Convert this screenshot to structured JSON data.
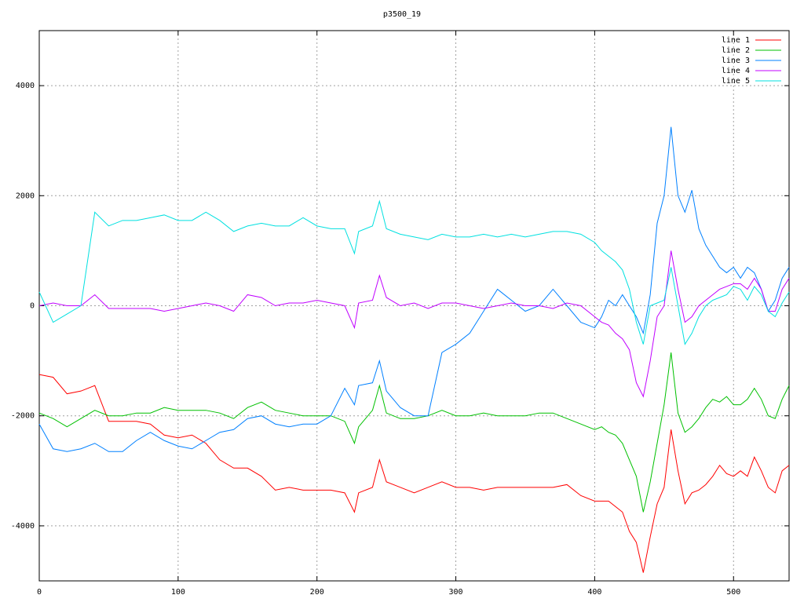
{
  "chart_data": {
    "type": "line",
    "title": "p3500_19",
    "x": [
      0,
      10,
      20,
      30,
      40,
      50,
      60,
      70,
      80,
      90,
      100,
      110,
      120,
      130,
      140,
      150,
      160,
      170,
      180,
      190,
      200,
      210,
      220,
      227,
      230,
      240,
      245,
      250,
      260,
      270,
      280,
      290,
      300,
      310,
      320,
      330,
      340,
      350,
      360,
      370,
      380,
      390,
      400,
      405,
      410,
      415,
      420,
      425,
      430,
      435,
      440,
      445,
      450,
      455,
      460,
      465,
      470,
      475,
      480,
      485,
      490,
      495,
      500,
      505,
      510,
      515,
      520,
      525,
      530,
      535,
      540
    ],
    "series": [
      {
        "name": "line 1",
        "color": "#ff0000",
        "values": [
          -1250,
          -1300,
          -1600,
          -1550,
          -1450,
          -2100,
          -2100,
          -2100,
          -2150,
          -2350,
          -2400,
          -2350,
          -2500,
          -2800,
          -2950,
          -2950,
          -3100,
          -3350,
          -3300,
          -3350,
          -3350,
          -3350,
          -3400,
          -3750,
          -3400,
          -3300,
          -2800,
          -3200,
          -3300,
          -3400,
          -3300,
          -3200,
          -3300,
          -3300,
          -3350,
          -3300,
          -3300,
          -3300,
          -3300,
          -3300,
          -3250,
          -3450,
          -3550,
          -3550,
          -3550,
          -3650,
          -3750,
          -4100,
          -4300,
          -4850,
          -4200,
          -3600,
          -3300,
          -2250,
          -3000,
          -3600,
          -3400,
          -3350,
          -3250,
          -3100,
          -2900,
          -3050,
          -3100,
          -3000,
          -3100,
          -2750,
          -3000,
          -3300,
          -3400,
          -3000,
          -2900
        ]
      },
      {
        "name": "line 2",
        "color": "#00c000",
        "values": [
          -1950,
          -2050,
          -2200,
          -2050,
          -1900,
          -2000,
          -2000,
          -1950,
          -1950,
          -1850,
          -1900,
          -1900,
          -1900,
          -1950,
          -2050,
          -1850,
          -1750,
          -1900,
          -1950,
          -2000,
          -2000,
          -2000,
          -2100,
          -2500,
          -2200,
          -1900,
          -1450,
          -1950,
          -2050,
          -2050,
          -2000,
          -1900,
          -2000,
          -2000,
          -1950,
          -2000,
          -2000,
          -2000,
          -1950,
          -1950,
          -2050,
          -2150,
          -2250,
          -2200,
          -2300,
          -2350,
          -2500,
          -2800,
          -3100,
          -3750,
          -3200,
          -2500,
          -1800,
          -850,
          -1950,
          -2300,
          -2200,
          -2050,
          -1850,
          -1700,
          -1750,
          -1650,
          -1800,
          -1800,
          -1700,
          -1500,
          -1700,
          -2000,
          -2050,
          -1700,
          -1450
        ]
      },
      {
        "name": "line 3",
        "color": "#0080ff",
        "values": [
          -2150,
          -2600,
          -2650,
          -2600,
          -2500,
          -2650,
          -2650,
          -2450,
          -2300,
          -2450,
          -2550,
          -2600,
          -2450,
          -2300,
          -2250,
          -2050,
          -2000,
          -2150,
          -2200,
          -2150,
          -2150,
          -2000,
          -1500,
          -1800,
          -1450,
          -1400,
          -1000,
          -1550,
          -1850,
          -2000,
          -2000,
          -850,
          -700,
          -500,
          -100,
          300,
          100,
          -100,
          0,
          300,
          0,
          -300,
          -400,
          -200,
          100,
          0,
          200,
          0,
          -200,
          -500,
          200,
          1500,
          2000,
          3250,
          2000,
          1700,
          2100,
          1400,
          1100,
          900,
          700,
          600,
          700,
          500,
          700,
          600,
          300,
          -100,
          100,
          500,
          700
        ]
      },
      {
        "name": "line 4",
        "color": "#c000ff",
        "values": [
          0,
          50,
          0,
          0,
          200,
          -50,
          -50,
          -50,
          -50,
          -100,
          -50,
          0,
          50,
          0,
          -100,
          200,
          150,
          0,
          50,
          50,
          100,
          50,
          0,
          -400,
          50,
          100,
          550,
          150,
          0,
          50,
          -50,
          50,
          50,
          0,
          -50,
          0,
          50,
          0,
          0,
          -50,
          50,
          0,
          -200,
          -300,
          -350,
          -500,
          -600,
          -800,
          -1400,
          -1650,
          -1000,
          -200,
          0,
          1000,
          300,
          -300,
          -200,
          0,
          100,
          200,
          300,
          350,
          400,
          400,
          300,
          500,
          300,
          -100,
          -100,
          300,
          500
        ]
      },
      {
        "name": "line 5",
        "color": "#00e0e0",
        "values": [
          250,
          -300,
          -150,
          0,
          1700,
          1450,
          1550,
          1550,
          1600,
          1650,
          1550,
          1550,
          1700,
          1550,
          1350,
          1450,
          1500,
          1450,
          1450,
          1600,
          1450,
          1400,
          1400,
          950,
          1350,
          1450,
          1900,
          1400,
          1300,
          1250,
          1200,
          1300,
          1250,
          1250,
          1300,
          1250,
          1300,
          1250,
          1300,
          1350,
          1350,
          1300,
          1150,
          1000,
          900,
          800,
          650,
          300,
          -300,
          -700,
          0,
          50,
          100,
          700,
          0,
          -700,
          -500,
          -200,
          0,
          100,
          150,
          200,
          350,
          300,
          100,
          350,
          200,
          -100,
          -200,
          50,
          250
        ]
      }
    ],
    "xlim": [
      0,
      540
    ],
    "xticks": [
      0,
      100,
      200,
      300,
      400,
      500
    ],
    "ylim": [
      -5000,
      5000
    ],
    "yticks": [
      -4000,
      -2000,
      0,
      2000,
      4000
    ],
    "grid": true,
    "legend": "top-right"
  }
}
